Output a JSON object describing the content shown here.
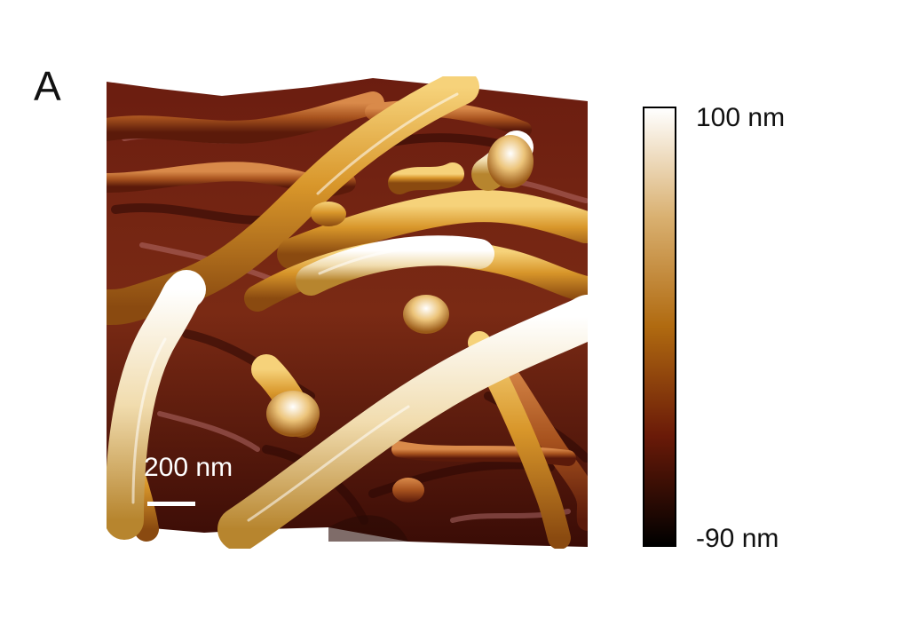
{
  "panel_label": "A",
  "scale_bar": {
    "label": "200 nm"
  },
  "colorbar": {
    "max_label": "100 nm",
    "min_label": "-90 nm",
    "colors": [
      "#ffffff",
      "#d9b070",
      "#b06a10",
      "#6a1a08",
      "#000000"
    ]
  },
  "image": {
    "subject": "afm-topography-3d",
    "palette": {
      "highlight": "#fff6e6",
      "gold": "#d29a2e",
      "brown": "#8a3a16",
      "maroon": "#5a1610",
      "dark": "#1a0604"
    }
  }
}
